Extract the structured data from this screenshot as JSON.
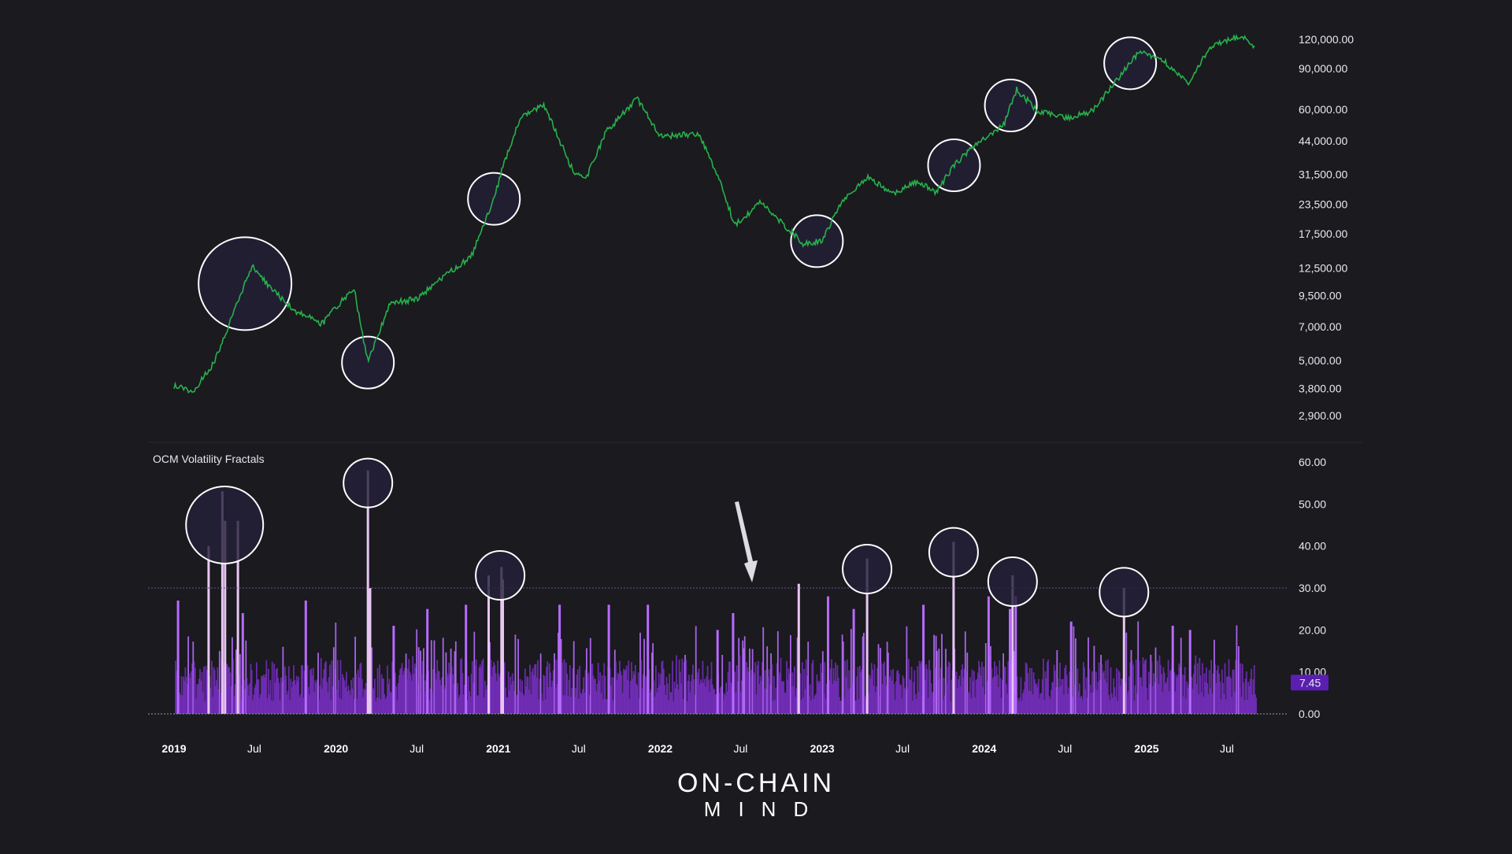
{
  "chart_data": [
    {
      "type": "line",
      "series": [
        {
          "values": [
            {
              "date": "2019-01-01",
              "value": 3900
            },
            {
              "date": "2019-02-15",
              "value": 3700
            },
            {
              "date": "2019-04-01",
              "value": 4900
            },
            {
              "date": "2019-05-15",
              "value": 8000
            },
            {
              "date": "2019-06-26",
              "value": 12800
            },
            {
              "date": "2019-08-01",
              "value": 10500
            },
            {
              "date": "2019-10-01",
              "value": 8200
            },
            {
              "date": "2019-12-01",
              "value": 7200
            },
            {
              "date": "2020-02-10",
              "value": 10300
            },
            {
              "date": "2020-03-13",
              "value": 4900
            },
            {
              "date": "2020-05-01",
              "value": 8800
            },
            {
              "date": "2020-07-01",
              "value": 9200
            },
            {
              "date": "2020-09-01",
              "value": 11500
            },
            {
              "date": "2020-11-01",
              "value": 14000
            },
            {
              "date": "2020-12-20",
              "value": 24000
            },
            {
              "date": "2021-01-15",
              "value": 36000
            },
            {
              "date": "2021-02-20",
              "value": 55000
            },
            {
              "date": "2021-04-14",
              "value": 63000
            },
            {
              "date": "2021-06-20",
              "value": 32000
            },
            {
              "date": "2021-07-20",
              "value": 31000
            },
            {
              "date": "2021-09-01",
              "value": 48000
            },
            {
              "date": "2021-11-10",
              "value": 67000
            },
            {
              "date": "2022-01-01",
              "value": 46000
            },
            {
              "date": "2022-03-28",
              "value": 47000
            },
            {
              "date": "2022-05-15",
              "value": 30000
            },
            {
              "date": "2022-06-18",
              "value": 19000
            },
            {
              "date": "2022-08-15",
              "value": 24000
            },
            {
              "date": "2022-11-21",
              "value": 15800
            },
            {
              "date": "2023-01-01",
              "value": 16500
            },
            {
              "date": "2023-02-15",
              "value": 24500
            },
            {
              "date": "2023-04-14",
              "value": 30500
            },
            {
              "date": "2023-06-15",
              "value": 26000
            },
            {
              "date": "2023-08-01",
              "value": 29300
            },
            {
              "date": "2023-09-15",
              "value": 26500
            },
            {
              "date": "2023-10-25",
              "value": 34500
            },
            {
              "date": "2023-12-15",
              "value": 43000
            },
            {
              "date": "2024-02-15",
              "value": 52000
            },
            {
              "date": "2024-03-14",
              "value": 73000
            },
            {
              "date": "2024-05-01",
              "value": 59000
            },
            {
              "date": "2024-07-05",
              "value": 55000
            },
            {
              "date": "2024-09-01",
              "value": 59000
            },
            {
              "date": "2024-11-15",
              "value": 90000
            },
            {
              "date": "2024-12-17",
              "value": 106000
            },
            {
              "date": "2025-02-01",
              "value": 100000
            },
            {
              "date": "2025-04-08",
              "value": 77000
            },
            {
              "date": "2025-05-22",
              "value": 111000
            },
            {
              "date": "2025-07-14",
              "value": 122000
            },
            {
              "date": "2025-08-14",
              "value": 121000
            },
            {
              "date": "2025-09-01",
              "value": 111000
            }
          ]
        }
      ],
      "ytick_labels": [
        "120,000.00",
        "90,000.00",
        "60,000.00",
        "44,000.00",
        "31,500.00",
        "23,500.00",
        "17,500.00",
        "12,500.00",
        "9,500.00",
        "7,000.00",
        "5,000.00",
        "3,800.00",
        "2,900.00"
      ],
      "yscale": "log",
      "grid": false,
      "annotations": {
        "circles": [
          "2019-06-10",
          "2020-03-13",
          "2020-12-22",
          "2022-12-20",
          "2023-10-25",
          "2024-03-01",
          "2024-11-25"
        ]
      },
      "colors": {
        "line": "#27b14b",
        "circle_fill": "#24203a",
        "circle_stroke": "#ffffff"
      }
    },
    {
      "type": "bar",
      "title": "OCM Volatility Fractals",
      "ytick_labels": [
        "60.00",
        "50.00",
        "40.00",
        "30.00",
        "20.00",
        "10.00",
        "0.00"
      ],
      "ylim": [
        0,
        60
      ],
      "threshold": 30,
      "last_value_label": "7.45",
      "spikes": [
        {
          "date": "2019-01-10",
          "value": 27
        },
        {
          "date": "2019-03-20",
          "value": 40
        },
        {
          "date": "2019-04-20",
          "value": 53
        },
        {
          "date": "2019-04-26",
          "value": 46
        },
        {
          "date": "2019-05-25",
          "value": 46
        },
        {
          "date": "2019-06-05",
          "value": 24
        },
        {
          "date": "2019-10-25",
          "value": 27
        },
        {
          "date": "2020-03-13",
          "value": 58
        },
        {
          "date": "2020-03-18",
          "value": 30
        },
        {
          "date": "2020-05-10",
          "value": 21
        },
        {
          "date": "2020-07-25",
          "value": 25
        },
        {
          "date": "2020-10-20",
          "value": 26
        },
        {
          "date": "2020-12-10",
          "value": 33
        },
        {
          "date": "2021-01-08",
          "value": 35
        },
        {
          "date": "2021-01-11",
          "value": 32
        },
        {
          "date": "2021-05-19",
          "value": 26
        },
        {
          "date": "2021-09-07",
          "value": 26
        },
        {
          "date": "2021-12-04",
          "value": 26
        },
        {
          "date": "2022-05-10",
          "value": 20
        },
        {
          "date": "2022-06-14",
          "value": 24
        },
        {
          "date": "2022-11-09",
          "value": 31
        },
        {
          "date": "2023-01-14",
          "value": 28
        },
        {
          "date": "2023-03-13",
          "value": 25
        },
        {
          "date": "2023-04-12",
          "value": 37
        },
        {
          "date": "2023-08-17",
          "value": 26
        },
        {
          "date": "2023-10-24",
          "value": 41
        },
        {
          "date": "2024-01-11",
          "value": 28
        },
        {
          "date": "2024-02-28",
          "value": 25
        },
        {
          "date": "2024-03-05",
          "value": 33
        },
        {
          "date": "2024-03-12",
          "value": 28
        },
        {
          "date": "2024-07-15",
          "value": 22
        },
        {
          "date": "2024-11-11",
          "value": 30
        },
        {
          "date": "2025-03-01",
          "value": 21
        },
        {
          "date": "2025-04-09",
          "value": 20
        }
      ],
      "colors": {
        "bar": "#7a2fc7",
        "bar_bright": "#b86bff",
        "spike": "#e9c6f2",
        "threshold": "#6e4f93",
        "last_value_bg": "#5a1fb0"
      }
    }
  ],
  "x_axis": {
    "ticks": [
      {
        "label": "2019",
        "date": "2019-01-01",
        "major": true
      },
      {
        "label": "Jul",
        "date": "2019-07-01",
        "major": false
      },
      {
        "label": "2020",
        "date": "2020-01-01",
        "major": true
      },
      {
        "label": "Jul",
        "date": "2020-07-01",
        "major": false
      },
      {
        "label": "2021",
        "date": "2021-01-01",
        "major": true
      },
      {
        "label": "Jul",
        "date": "2021-07-01",
        "major": false
      },
      {
        "label": "2022",
        "date": "2022-01-01",
        "major": true
      },
      {
        "label": "Jul",
        "date": "2022-07-01",
        "major": false
      },
      {
        "label": "2023",
        "date": "2023-01-01",
        "major": true
      },
      {
        "label": "Jul",
        "date": "2023-07-01",
        "major": false
      },
      {
        "label": "2024",
        "date": "2024-01-01",
        "major": true
      },
      {
        "label": "Jul",
        "date": "2024-07-01",
        "major": false
      },
      {
        "label": "2025",
        "date": "2025-01-01",
        "major": true
      },
      {
        "label": "Jul",
        "date": "2025-07-01",
        "major": false
      }
    ]
  },
  "logo": {
    "line1": "ON-CHAIN",
    "line2": "MIND"
  }
}
